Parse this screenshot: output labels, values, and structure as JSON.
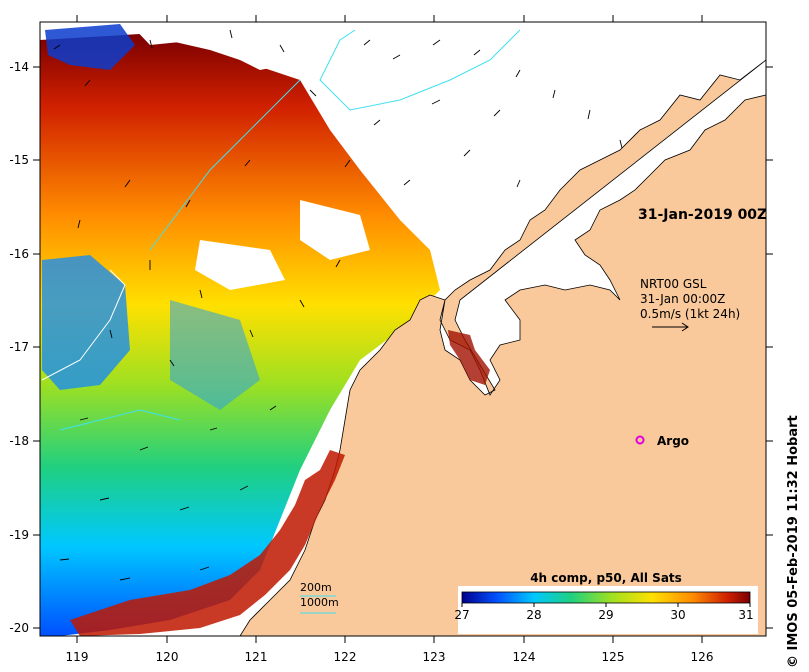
{
  "map": {
    "lat_ticks": [
      "-14",
      "-15",
      "-16",
      "-17",
      "-18",
      "-19",
      "-20"
    ],
    "lon_ticks": [
      "119",
      "120",
      "121",
      "122",
      "123",
      "124",
      "125",
      "126"
    ],
    "extent": {
      "lon_min": 118.6,
      "lon_max": 126.7,
      "lat_min": -20.05,
      "lat_max": -13.55
    },
    "colors": {
      "land": "#f9c89b",
      "no_data": "#ffffff",
      "coastline": "#000000",
      "isobath": "#40e0f0"
    }
  },
  "annotations": {
    "date_label": "31-Jan-2019 00Z",
    "current_source": "NRT00 GSL",
    "current_time": "31-Jan 00:00Z",
    "current_scale": "0.5m/s (1kt 24h)",
    "argo_label": "Argo",
    "argo_position": {
      "lon": 125.3,
      "lat": -18.0
    },
    "credit": "© IMOS 05-Feb-2019 11:32 Hobart"
  },
  "isobath_legend": {
    "line1": "200m",
    "line2": "1000m"
  },
  "colorbar": {
    "title": "4h comp, p50, All Sats",
    "ticks": [
      "27",
      "28",
      "29",
      "30",
      "31"
    ],
    "range": [
      27,
      31
    ],
    "stops": [
      "#00008c",
      "#0050ff",
      "#00c8ff",
      "#20d080",
      "#a0e020",
      "#ffe000",
      "#ff8c00",
      "#d02000",
      "#7a0000"
    ]
  }
}
